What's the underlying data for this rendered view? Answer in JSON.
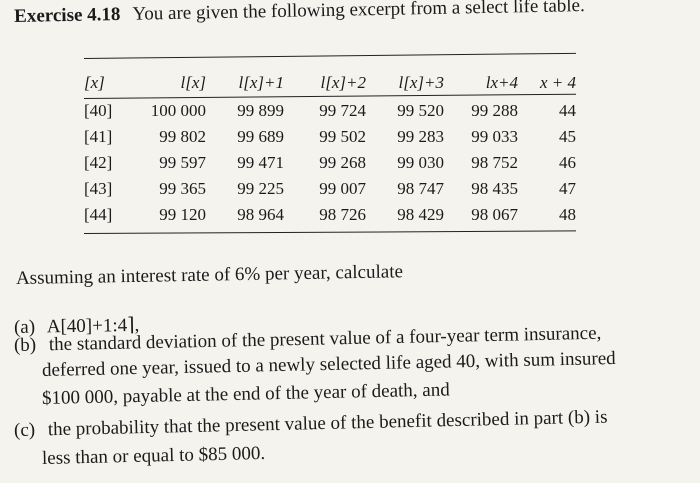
{
  "exercise": {
    "label": "Exercise",
    "number": "4.18",
    "intro": "You are given the following excerpt from a select life table."
  },
  "table": {
    "headers": [
      "[x]",
      "l[x]",
      "l[x]+1",
      "l[x]+2",
      "l[x]+3",
      "lx+4",
      "x + 4"
    ],
    "rows": [
      [
        "[40]",
        "100 000",
        "99 899",
        "99 724",
        "99 520",
        "99 288",
        "44"
      ],
      [
        "[41]",
        "99 802",
        "99 689",
        "99 502",
        "99 283",
        "99 033",
        "45"
      ],
      [
        "[42]",
        "99 597",
        "99 471",
        "99 268",
        "99 030",
        "98 752",
        "46"
      ],
      [
        "[43]",
        "99 365",
        "99 225",
        "99 007",
        "98 747",
        "98 435",
        "47"
      ],
      [
        "[44]",
        "99 120",
        "98 964",
        "98 726",
        "98 429",
        "98 067",
        "48"
      ]
    ]
  },
  "prompt": "Assuming an interest rate of 6% per year, calculate",
  "parts": {
    "a": {
      "label": "(a)",
      "text": "A[40]+1:4⌉,"
    },
    "b": {
      "label": "(b)",
      "line1": "the standard deviation of the present value of a four-year term insurance,",
      "line2": "deferred one year, issued to a newly selected life aged 40, with sum insured",
      "line3": "$100 000, payable at the end of the year of death, and"
    },
    "c": {
      "label": "(c)",
      "line1": "the probability that the present value of the benefit described in part (b) is",
      "line2": "less than or equal to $85 000."
    }
  }
}
